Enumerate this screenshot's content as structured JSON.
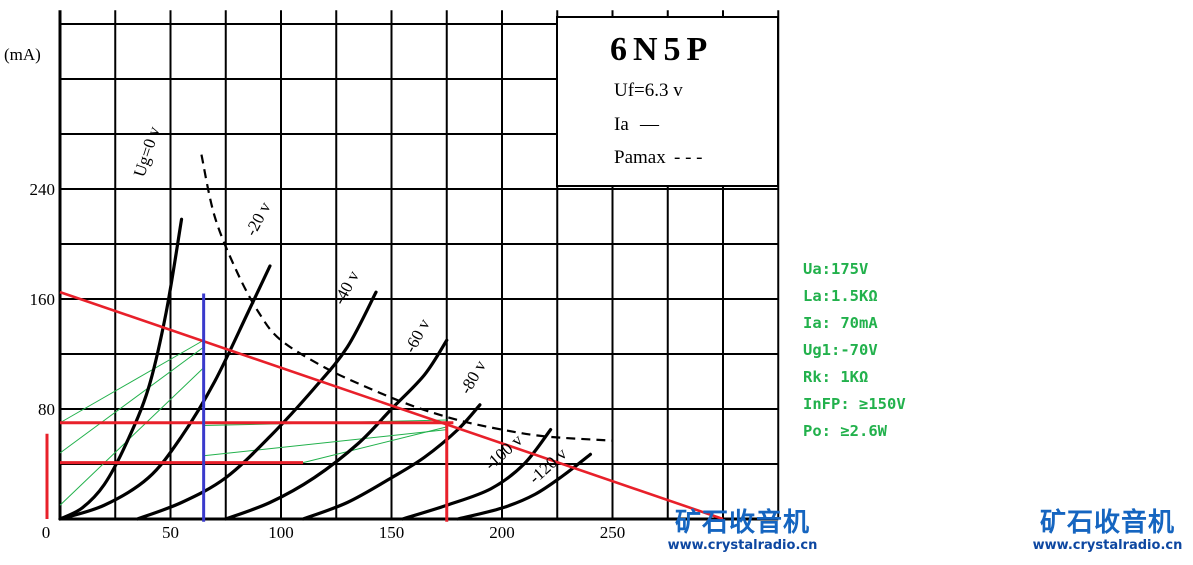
{
  "chart_data": {
    "type": "line",
    "title": "6N5P",
    "legend": {
      "filament": "Uf=6.3 v",
      "ia_label": "Ia",
      "ia_symbol": "—",
      "pamax_label": "Pamax",
      "pamax_symbol": "- - -"
    },
    "ylabel": "(mA)",
    "y_ticks": [
      "80",
      "160",
      "240"
    ],
    "x_ticks": [
      "0",
      "50",
      "100",
      "150",
      "200",
      "250"
    ],
    "xlim": [
      0,
      325
    ],
    "ylim": [
      0,
      370
    ],
    "series": [
      {
        "name": "Ug=0 v",
        "points": [
          [
            0,
            0
          ],
          [
            10,
            8
          ],
          [
            20,
            25
          ],
          [
            30,
            55
          ],
          [
            40,
            95
          ],
          [
            48,
            150
          ],
          [
            55,
            218
          ]
        ]
      },
      {
        "name": "-20 v",
        "points": [
          [
            0,
            0
          ],
          [
            20,
            10
          ],
          [
            40,
            30
          ],
          [
            55,
            60
          ],
          [
            70,
            100
          ],
          [
            85,
            150
          ],
          [
            95,
            184
          ]
        ]
      },
      {
        "name": "-40 v",
        "points": [
          [
            35,
            0
          ],
          [
            55,
            12
          ],
          [
            75,
            30
          ],
          [
            95,
            60
          ],
          [
            115,
            95
          ],
          [
            130,
            125
          ],
          [
            143,
            165
          ]
        ]
      },
      {
        "name": "-60 v",
        "points": [
          [
            75,
            0
          ],
          [
            95,
            12
          ],
          [
            115,
            30
          ],
          [
            135,
            55
          ],
          [
            150,
            80
          ],
          [
            165,
            105
          ],
          [
            175,
            130
          ]
        ]
      },
      {
        "name": "-80 v",
        "points": [
          [
            110,
            0
          ],
          [
            130,
            12
          ],
          [
            150,
            30
          ],
          [
            165,
            45
          ],
          [
            180,
            65
          ],
          [
            190,
            83
          ]
        ]
      },
      {
        "name": "-100 v",
        "points": [
          [
            155,
            0
          ],
          [
            175,
            10
          ],
          [
            195,
            22
          ],
          [
            210,
            40
          ],
          [
            222,
            65
          ]
        ]
      },
      {
        "name": "-120 v",
        "points": [
          [
            180,
            0
          ],
          [
            200,
            8
          ],
          [
            215,
            18
          ],
          [
            228,
            32
          ],
          [
            240,
            47
          ]
        ]
      }
    ],
    "pamax_curve": [
      [
        64,
        265
      ],
      [
        70,
        220
      ],
      [
        80,
        180
      ],
      [
        90,
        150
      ],
      [
        100,
        130
      ],
      [
        120,
        110
      ],
      [
        140,
        95
      ],
      [
        160,
        82
      ],
      [
        180,
        72
      ],
      [
        200,
        65
      ],
      [
        220,
        60
      ],
      [
        250,
        57
      ]
    ],
    "load_line": {
      "from": [
        0,
        165
      ],
      "to": [
        300,
        0
      ]
    },
    "operating_markers": {
      "ua": 175,
      "ia": 70,
      "i_min": 41,
      "u_sweep": 65
    },
    "grid": true
  },
  "params": [
    "Ua:175V",
    "La:1.5KΩ",
    "Ia: 70mA",
    "Ug1:-70V",
    "Rk: 1KΩ",
    "InFP: ≥150V",
    "Po: ≥2.6W"
  ],
  "watermark": {
    "cn": "矿石收音机",
    "url": "www.crystalradio.cn"
  },
  "colors": {
    "grid": "#000000",
    "curve": "#000000",
    "load_line": "#e8202a",
    "marker_blue": "#3a3acc",
    "green_thin": "#22b14c",
    "params_text": "#22b14c",
    "watermark": "#1565c0"
  }
}
